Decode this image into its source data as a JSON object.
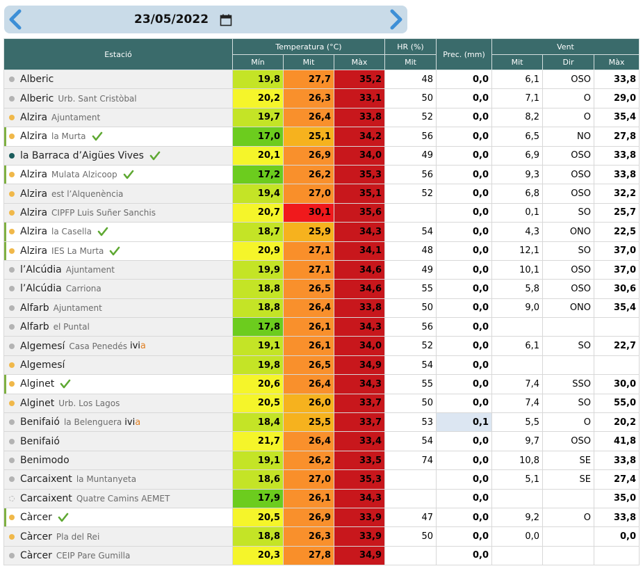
{
  "date": {
    "value": "23/05/2022"
  },
  "header": {
    "station": "Estació",
    "temperature": "Temperatura (°C)",
    "hr": "HR (%)",
    "prec": "Prec. (mm)",
    "wind": "Vent",
    "t_min": "Mín",
    "t_mit": "Mit",
    "t_max": "Màx",
    "hr_mit": "Mit",
    "w_mit": "Mit",
    "w_dir": "Dir",
    "w_max": "Màx"
  },
  "colors": {
    "header_bg": "#3a6b6b",
    "dot_grey": "#b3b3b3",
    "dot_orange": "#f0b84a",
    "dot_teal": "#1a5c5c",
    "highlight_border": "#7fb042",
    "check": "#5ea832"
  },
  "rows": [
    {
      "name": "Alberic",
      "sub": "",
      "dot": "grey",
      "hl": false,
      "check": false,
      "ivia": false,
      "min": "19,8",
      "mit": "27,7",
      "max": "35,2",
      "min_c": "#c4e426",
      "mit_c": "#f98f2a",
      "max_c": "#c8171c",
      "hr": "48",
      "prec": "0,0",
      "prec_hi": false,
      "wm": "6,1",
      "wd": "OSO",
      "wx": "33,8"
    },
    {
      "name": "Alberic",
      "sub": "Urb. Sant Cristòbal",
      "dot": "grey",
      "hl": false,
      "check": false,
      "ivia": false,
      "min": "20,2",
      "mit": "26,3",
      "max": "33,1",
      "min_c": "#f5f52a",
      "mit_c": "#f9902c",
      "max_c": "#c8171c",
      "hr": "50",
      "prec": "0,0",
      "prec_hi": false,
      "wm": "7,1",
      "wd": "O",
      "wx": "29,0"
    },
    {
      "name": "Alzira",
      "sub": "Ajuntament",
      "dot": "orange",
      "hl": false,
      "check": false,
      "ivia": false,
      "min": "19,7",
      "mit": "26,4",
      "max": "33,8",
      "min_c": "#c4e426",
      "mit_c": "#f9902c",
      "max_c": "#c8171c",
      "hr": "52",
      "prec": "0,0",
      "prec_hi": false,
      "wm": "8,2",
      "wd": "O",
      "wx": "35,4"
    },
    {
      "name": "Alzira",
      "sub": "la Murta",
      "dot": "orange",
      "hl": true,
      "check": true,
      "ivia": false,
      "min": "17,0",
      "mit": "25,1",
      "max": "34,2",
      "min_c": "#6ccc1e",
      "mit_c": "#f6b21e",
      "max_c": "#c8171c",
      "hr": "56",
      "prec": "0,0",
      "prec_hi": false,
      "wm": "6,5",
      "wd": "NO",
      "wx": "27,8"
    },
    {
      "name": "la Barraca d’Aigües Vives",
      "sub": "",
      "dot": "teal",
      "hl": false,
      "check": true,
      "ivia": false,
      "min": "20,1",
      "mit": "26,9",
      "max": "34,0",
      "min_c": "#f5f52a",
      "mit_c": "#f9902c",
      "max_c": "#c8171c",
      "hr": "49",
      "prec": "0,0",
      "prec_hi": false,
      "wm": "6,9",
      "wd": "OSO",
      "wx": "33,8"
    },
    {
      "name": "Alzira",
      "sub": "Mulata Alzicoop",
      "dot": "orange",
      "hl": true,
      "check": true,
      "ivia": false,
      "min": "17,2",
      "mit": "26,2",
      "max": "35,3",
      "min_c": "#6ccc1e",
      "mit_c": "#f9902c",
      "max_c": "#c8171c",
      "hr": "56",
      "prec": "0,0",
      "prec_hi": false,
      "wm": "9,3",
      "wd": "OSO",
      "wx": "33,8"
    },
    {
      "name": "Alzira",
      "sub": "est l’Alquenència",
      "dot": "orange",
      "hl": false,
      "check": false,
      "ivia": false,
      "min": "19,4",
      "mit": "27,0",
      "max": "35,1",
      "min_c": "#c4e426",
      "mit_c": "#f98f2a",
      "max_c": "#c8171c",
      "hr": "52",
      "prec": "0,0",
      "prec_hi": false,
      "wm": "6,8",
      "wd": "OSO",
      "wx": "32,2"
    },
    {
      "name": "Alzira",
      "sub": "CIPFP Luis Suñer Sanchis",
      "dot": "orange",
      "hl": false,
      "check": false,
      "ivia": false,
      "min": "20,7",
      "mit": "30,1",
      "max": "35,6",
      "min_c": "#f5f52a",
      "mit_c": "#f0191c",
      "max_c": "#c8171c",
      "hr": "",
      "prec": "0,0",
      "prec_hi": false,
      "wm": "0,1",
      "wd": "SO",
      "wx": "25,7"
    },
    {
      "name": "Alzira",
      "sub": "la Casella",
      "dot": "orange",
      "hl": true,
      "check": true,
      "ivia": false,
      "min": "18,7",
      "mit": "25,9",
      "max": "34,3",
      "min_c": "#c4e426",
      "mit_c": "#f6b21e",
      "max_c": "#c8171c",
      "hr": "54",
      "prec": "0,0",
      "prec_hi": false,
      "wm": "4,3",
      "wd": "ONO",
      "wx": "22,5"
    },
    {
      "name": "Alzira",
      "sub": "IES La Murta",
      "dot": "orange",
      "hl": true,
      "check": true,
      "ivia": false,
      "min": "20,9",
      "mit": "27,1",
      "max": "34,1",
      "min_c": "#f5f52a",
      "mit_c": "#f98f2a",
      "max_c": "#c8171c",
      "hr": "48",
      "prec": "0,0",
      "prec_hi": false,
      "wm": "12,1",
      "wd": "SO",
      "wx": "37,0"
    },
    {
      "name": "l’Alcúdia",
      "sub": "Ajuntament",
      "dot": "grey",
      "hl": false,
      "check": false,
      "ivia": false,
      "min": "19,9",
      "mit": "27,1",
      "max": "34,6",
      "min_c": "#c4e426",
      "mit_c": "#f98f2a",
      "max_c": "#c8171c",
      "hr": "49",
      "prec": "0,0",
      "prec_hi": false,
      "wm": "10,1",
      "wd": "OSO",
      "wx": "37,0"
    },
    {
      "name": "l’Alcúdia",
      "sub": "Carriona",
      "dot": "grey",
      "hl": false,
      "check": false,
      "ivia": false,
      "min": "18,8",
      "mit": "26,5",
      "max": "34,6",
      "min_c": "#c4e426",
      "mit_c": "#f9902c",
      "max_c": "#c8171c",
      "hr": "55",
      "prec": "0,0",
      "prec_hi": false,
      "wm": "5,8",
      "wd": "OSO",
      "wx": "30,6"
    },
    {
      "name": "Alfarb",
      "sub": "Ajuntament",
      "dot": "grey",
      "hl": false,
      "check": false,
      "ivia": false,
      "min": "18,8",
      "mit": "26,4",
      "max": "33,8",
      "min_c": "#c4e426",
      "mit_c": "#f9902c",
      "max_c": "#c8171c",
      "hr": "50",
      "prec": "0,0",
      "prec_hi": false,
      "wm": "9,0",
      "wd": "ONO",
      "wx": "35,4"
    },
    {
      "name": "Alfarb",
      "sub": "el Puntal",
      "dot": "grey",
      "hl": false,
      "check": false,
      "ivia": false,
      "min": "17,8",
      "mit": "26,1",
      "max": "34,3",
      "min_c": "#6ccc1e",
      "mit_c": "#f9902c",
      "max_c": "#c8171c",
      "hr": "56",
      "prec": "0,0",
      "prec_hi": false,
      "wm": "",
      "wd": "",
      "wx": ""
    },
    {
      "name": "Algemesí",
      "sub": "Casa Penedés",
      "dot": "grey",
      "hl": false,
      "check": false,
      "ivia": true,
      "min": "19,1",
      "mit": "26,1",
      "max": "34,0",
      "min_c": "#c4e426",
      "mit_c": "#f9902c",
      "max_c": "#c8171c",
      "hr": "52",
      "prec": "0,0",
      "prec_hi": false,
      "wm": "6,1",
      "wd": "SO",
      "wx": "22,7"
    },
    {
      "name": "Algemesí",
      "sub": "",
      "dot": "orange",
      "hl": false,
      "check": false,
      "ivia": false,
      "min": "19,8",
      "mit": "26,5",
      "max": "34,9",
      "min_c": "#c4e426",
      "mit_c": "#f9902c",
      "max_c": "#c8171c",
      "hr": "54",
      "prec": "0,0",
      "prec_hi": false,
      "wm": "",
      "wd": "",
      "wx": ""
    },
    {
      "name": "Alginet",
      "sub": "",
      "dot": "orange",
      "hl": true,
      "check": true,
      "ivia": false,
      "min": "20,6",
      "mit": "26,4",
      "max": "34,3",
      "min_c": "#f5f52a",
      "mit_c": "#f9902c",
      "max_c": "#c8171c",
      "hr": "55",
      "prec": "0,0",
      "prec_hi": false,
      "wm": "7,4",
      "wd": "SSO",
      "wx": "30,0"
    },
    {
      "name": "Alginet",
      "sub": "Urb. Los Lagos",
      "dot": "orange",
      "hl": false,
      "check": false,
      "ivia": false,
      "min": "20,5",
      "mit": "26,0",
      "max": "33,7",
      "min_c": "#f5f52a",
      "mit_c": "#f6b21e",
      "max_c": "#c8171c",
      "hr": "50",
      "prec": "0,0",
      "prec_hi": false,
      "wm": "7,4",
      "wd": "SO",
      "wx": "55,0"
    },
    {
      "name": "Benifaió",
      "sub": "la Belenguera",
      "dot": "grey",
      "hl": false,
      "check": false,
      "ivia": true,
      "min": "18,4",
      "mit": "25,5",
      "max": "33,7",
      "min_c": "#c4e426",
      "mit_c": "#f6b21e",
      "max_c": "#c8171c",
      "hr": "53",
      "prec": "0,1",
      "prec_hi": true,
      "wm": "5,5",
      "wd": "O",
      "wx": "20,2"
    },
    {
      "name": "Benifaió",
      "sub": "",
      "dot": "grey",
      "hl": false,
      "check": false,
      "ivia": false,
      "min": "21,7",
      "mit": "26,4",
      "max": "33,4",
      "min_c": "#f5f52a",
      "mit_c": "#f9902c",
      "max_c": "#c8171c",
      "hr": "54",
      "prec": "0,0",
      "prec_hi": false,
      "wm": "9,7",
      "wd": "OSO",
      "wx": "41,8"
    },
    {
      "name": "Benimodo",
      "sub": "",
      "dot": "grey",
      "hl": false,
      "check": false,
      "ivia": false,
      "min": "19,1",
      "mit": "26,2",
      "max": "33,5",
      "min_c": "#c4e426",
      "mit_c": "#f9902c",
      "max_c": "#c8171c",
      "hr": "74",
      "prec": "0,0",
      "prec_hi": false,
      "wm": "10,8",
      "wd": "SE",
      "wx": "33,8"
    },
    {
      "name": "Carcaixent",
      "sub": "la Muntanyeta",
      "dot": "grey",
      "hl": false,
      "check": false,
      "ivia": false,
      "min": "18,6",
      "mit": "27,0",
      "max": "35,3",
      "min_c": "#c4e426",
      "mit_c": "#f98f2a",
      "max_c": "#c8171c",
      "hr": "",
      "prec": "0,0",
      "prec_hi": false,
      "wm": "5,1",
      "wd": "SE",
      "wx": "27,4"
    },
    {
      "name": "Carcaixent",
      "sub": "Quatre Camins AEMET",
      "dot": "dashed",
      "hl": false,
      "check": false,
      "ivia": false,
      "min": "17,9",
      "mit": "26,1",
      "max": "34,3",
      "min_c": "#6ccc1e",
      "mit_c": "#f9902c",
      "max_c": "#c8171c",
      "hr": "",
      "prec": "0,0",
      "prec_hi": false,
      "wm": "",
      "wd": "",
      "wx": "35,0"
    },
    {
      "name": "Càrcer",
      "sub": "",
      "dot": "orange",
      "hl": true,
      "check": true,
      "ivia": false,
      "min": "20,5",
      "mit": "26,9",
      "max": "33,9",
      "min_c": "#f5f52a",
      "mit_c": "#f9902c",
      "max_c": "#c8171c",
      "hr": "47",
      "prec": "0,0",
      "prec_hi": false,
      "wm": "9,2",
      "wd": "O",
      "wx": "33,8"
    },
    {
      "name": "Càrcer",
      "sub": "Pla del Rei",
      "dot": "orange",
      "hl": false,
      "check": false,
      "ivia": false,
      "min": "18,8",
      "mit": "26,3",
      "max": "33,9",
      "min_c": "#c4e426",
      "mit_c": "#f9902c",
      "max_c": "#c8171c",
      "hr": "50",
      "prec": "0,0",
      "prec_hi": false,
      "wm": "0,0",
      "wd": "",
      "wx": "0,0"
    },
    {
      "name": "Càrcer",
      "sub": "CEIP Pare Gumilla",
      "dot": "grey",
      "hl": false,
      "check": false,
      "ivia": false,
      "min": "20,3",
      "mit": "27,8",
      "max": "34,9",
      "min_c": "#f5f52a",
      "mit_c": "#f98f2a",
      "max_c": "#c8171c",
      "hr": "",
      "prec": "0,0",
      "prec_hi": false,
      "wm": "",
      "wd": "",
      "wx": ""
    }
  ]
}
